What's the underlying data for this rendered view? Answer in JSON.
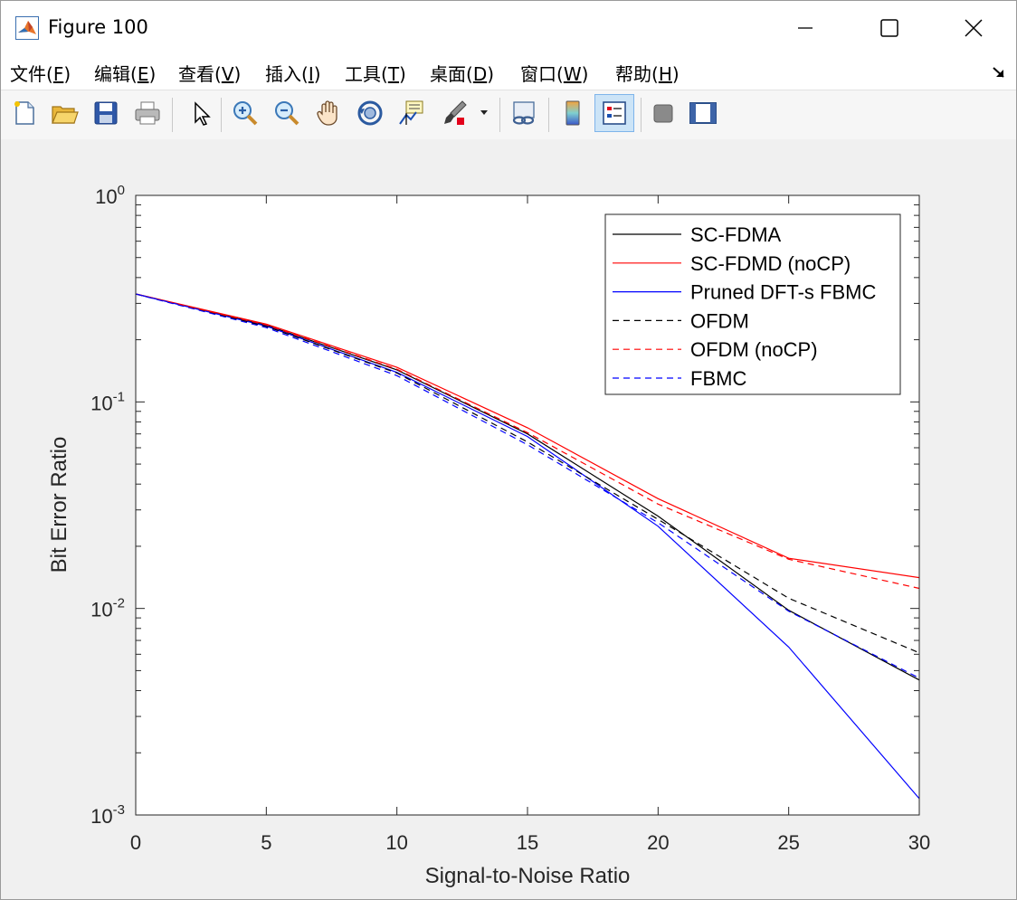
{
  "window": {
    "title": "Figure 100"
  },
  "menu": [
    {
      "pre": "文件(",
      "key": "F",
      "post": ")"
    },
    {
      "pre": "编辑(",
      "key": "E",
      "post": ")"
    },
    {
      "pre": "查看(",
      "key": "V",
      "post": ")"
    },
    {
      "pre": "插入(",
      "key": "I",
      "post": ")"
    },
    {
      "pre": "工具(",
      "key": "T",
      "post": ")"
    },
    {
      "pre": "桌面(",
      "key": "D",
      "post": ")"
    },
    {
      "pre": "窗口(",
      "key": "W",
      "post": ")"
    },
    {
      "pre": "帮助(",
      "key": "H",
      "post": ")"
    }
  ],
  "toolbar_icons": [
    "new-figure-icon",
    "open-file-icon",
    "save-icon",
    "print-icon",
    "select-arrow-icon",
    "zoom-in-icon",
    "zoom-out-icon",
    "pan-hand-icon",
    "rotate-3d-icon",
    "data-cursor-icon",
    "brush-icon",
    "link-plot-icon",
    "colorbar-icon",
    "legend-icon",
    "hide-plot-tools-icon",
    "show-plot-tools-icon"
  ],
  "chart_data": {
    "type": "line",
    "title": "",
    "xlabel": "Signal-to-Noise Ratio",
    "ylabel": "Bit Error Ratio",
    "xlim": [
      0,
      30
    ],
    "ylim": [
      0.001,
      1
    ],
    "yscale": "log",
    "x_ticks": [
      "0",
      "5",
      "10",
      "15",
      "20",
      "25",
      "30"
    ],
    "y_ticks": [
      {
        "base": "10",
        "exp": "0"
      },
      {
        "base": "10",
        "exp": "-1"
      },
      {
        "base": "10",
        "exp": "-2"
      },
      {
        "base": "10",
        "exp": "-3"
      }
    ],
    "legend_position": "top-right",
    "grid": false,
    "x": [
      0,
      5,
      10,
      15,
      20,
      25,
      30
    ],
    "series": [
      {
        "name": "SC-FDMA",
        "color": "#000000",
        "dash": "solid",
        "values": [
          0.333,
          0.235,
          0.143,
          0.07,
          0.028,
          0.0098,
          0.0045
        ]
      },
      {
        "name": "SC-FDMD (noCP)",
        "color": "#ff0000",
        "dash": "solid",
        "values": [
          0.333,
          0.238,
          0.147,
          0.075,
          0.034,
          0.0175,
          0.0141
        ]
      },
      {
        "name": "Pruned DFT-s FBMC",
        "color": "#0000ff",
        "dash": "solid",
        "values": [
          0.333,
          0.233,
          0.139,
          0.068,
          0.025,
          0.0065,
          0.0012
        ]
      },
      {
        "name": "OFDM",
        "color": "#000000",
        "dash": "dashed",
        "values": [
          0.333,
          0.232,
          0.138,
          0.064,
          0.027,
          0.0112,
          0.0061
        ]
      },
      {
        "name": "OFDM (noCP)",
        "color": "#ff0000",
        "dash": "dashed",
        "values": [
          0.333,
          0.236,
          0.144,
          0.071,
          0.032,
          0.0173,
          0.0125
        ]
      },
      {
        "name": "FBMC",
        "color": "#0000ff",
        "dash": "dashed",
        "values": [
          0.333,
          0.229,
          0.134,
          0.062,
          0.026,
          0.0097,
          0.0046
        ]
      }
    ]
  }
}
